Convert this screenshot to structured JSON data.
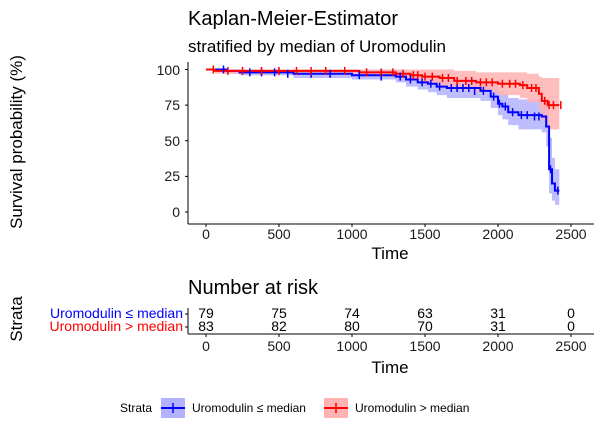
{
  "km": {
    "title": "Kaplan-Meier-Estimator",
    "subtitle": "stratified by median of Uromodulin",
    "xlabel": "Time",
    "ylabel": "Survival probability (%)",
    "xticks": [
      "0",
      "500",
      "1000",
      "1500",
      "2000",
      "2500"
    ],
    "yticks": [
      "0",
      "25",
      "50",
      "75",
      "100"
    ]
  },
  "risk": {
    "title": "Number at risk",
    "ylabel": "Strata",
    "xlabel": "Time",
    "xticks": [
      "0",
      "500",
      "1000",
      "1500",
      "2000",
      "2500"
    ]
  },
  "legend": {
    "title": "Strata",
    "items": [
      {
        "label": "Uromodulin ≤ median",
        "color": "#0000ff",
        "fill": "#b3b3ff"
      },
      {
        "label": "Uromodulin > median",
        "color": "#ff0000",
        "fill": "#ffb3b3"
      }
    ]
  },
  "chart_data": {
    "type": "line",
    "subtype": "step",
    "title": "Kaplan-Meier-Estimator",
    "subtitle": "stratified by median of Uromodulin",
    "xlabel": "Time",
    "ylabel": "Survival probability (%)",
    "xlim": [
      0,
      2500
    ],
    "ylim": [
      0,
      100
    ],
    "grid": false,
    "legend_position": "bottom",
    "series": [
      {
        "name": "Uromodulin ≤ median",
        "color": "#0000ff",
        "steps": [
          [
            0,
            100
          ],
          [
            140,
            99
          ],
          [
            230,
            98
          ],
          [
            600,
            97
          ],
          [
            1000,
            96
          ],
          [
            1300,
            95
          ],
          [
            1370,
            93
          ],
          [
            1450,
            91
          ],
          [
            1520,
            90
          ],
          [
            1580,
            88
          ],
          [
            1650,
            87
          ],
          [
            1880,
            85
          ],
          [
            1950,
            81
          ],
          [
            2000,
            76
          ],
          [
            2030,
            74
          ],
          [
            2070,
            70
          ],
          [
            2140,
            68
          ],
          [
            2300,
            67
          ],
          [
            2330,
            60
          ],
          [
            2350,
            30
          ],
          [
            2370,
            20
          ],
          [
            2390,
            15
          ],
          [
            2420,
            15
          ]
        ],
        "lower": [
          [
            0,
            100
          ],
          [
            140,
            97
          ],
          [
            230,
            96
          ],
          [
            600,
            94
          ],
          [
            1000,
            93
          ],
          [
            1300,
            91
          ],
          [
            1370,
            88
          ],
          [
            1450,
            86
          ],
          [
            1520,
            84
          ],
          [
            1580,
            82
          ],
          [
            1650,
            80
          ],
          [
            1880,
            78
          ],
          [
            1950,
            73
          ],
          [
            2000,
            68
          ],
          [
            2030,
            65
          ],
          [
            2070,
            61
          ],
          [
            2140,
            58
          ],
          [
            2300,
            56
          ],
          [
            2330,
            46
          ],
          [
            2350,
            13
          ],
          [
            2370,
            8
          ],
          [
            2390,
            5
          ],
          [
            2420,
            5
          ]
        ],
        "upper": [
          [
            0,
            100
          ],
          [
            140,
            100
          ],
          [
            230,
            100
          ],
          [
            600,
            100
          ],
          [
            1000,
            100
          ],
          [
            1300,
            99
          ],
          [
            1370,
            98
          ],
          [
            1450,
            96
          ],
          [
            1520,
            95
          ],
          [
            1580,
            94
          ],
          [
            1650,
            93
          ],
          [
            1880,
            92
          ],
          [
            1950,
            89
          ],
          [
            2000,
            85
          ],
          [
            2030,
            83
          ],
          [
            2070,
            80
          ],
          [
            2140,
            79
          ],
          [
            2300,
            78
          ],
          [
            2330,
            74
          ],
          [
            2350,
            52
          ],
          [
            2370,
            38
          ],
          [
            2390,
            30
          ],
          [
            2420,
            30
          ]
        ],
        "censored": [
          [
            120,
            100
          ],
          [
            300,
            98
          ],
          [
            380,
            98
          ],
          [
            470,
            98
          ],
          [
            560,
            97
          ],
          [
            720,
            97
          ],
          [
            850,
            97
          ],
          [
            1050,
            96
          ],
          [
            1200,
            95
          ],
          [
            1330,
            95
          ],
          [
            1400,
            93
          ],
          [
            1480,
            91
          ],
          [
            1540,
            90
          ],
          [
            1600,
            88
          ],
          [
            1680,
            87
          ],
          [
            1720,
            87
          ],
          [
            1760,
            87
          ],
          [
            1800,
            87
          ],
          [
            1840,
            85
          ],
          [
            1900,
            85
          ],
          [
            1970,
            81
          ],
          [
            2010,
            76
          ],
          [
            2050,
            74
          ],
          [
            2100,
            70
          ],
          [
            2160,
            68
          ],
          [
            2200,
            68
          ],
          [
            2250,
            67
          ],
          [
            2280,
            67
          ],
          [
            2360,
            30
          ],
          [
            2410,
            15
          ]
        ]
      },
      {
        "name": "Uromodulin > median",
        "color": "#ff0000",
        "steps": [
          [
            0,
            100
          ],
          [
            60,
            99
          ],
          [
            1050,
            98
          ],
          [
            1300,
            97
          ],
          [
            1400,
            96
          ],
          [
            1480,
            95
          ],
          [
            1600,
            94
          ],
          [
            1700,
            92
          ],
          [
            1850,
            91
          ],
          [
            2000,
            90
          ],
          [
            2150,
            89
          ],
          [
            2200,
            87
          ],
          [
            2280,
            83
          ],
          [
            2300,
            78
          ],
          [
            2340,
            75
          ],
          [
            2420,
            75
          ]
        ],
        "lower": [
          [
            0,
            100
          ],
          [
            60,
            97
          ],
          [
            1050,
            96
          ],
          [
            1300,
            94
          ],
          [
            1400,
            92
          ],
          [
            1480,
            90
          ],
          [
            1600,
            88
          ],
          [
            1700,
            86
          ],
          [
            1850,
            84
          ],
          [
            2000,
            82
          ],
          [
            2150,
            80
          ],
          [
            2200,
            77
          ],
          [
            2280,
            71
          ],
          [
            2300,
            64
          ],
          [
            2340,
            58
          ],
          [
            2420,
            58
          ]
        ],
        "upper": [
          [
            0,
            100
          ],
          [
            60,
            100
          ],
          [
            1050,
            100
          ],
          [
            1300,
            100
          ],
          [
            1400,
            100
          ],
          [
            1480,
            100
          ],
          [
            1600,
            100
          ],
          [
            1700,
            99
          ],
          [
            1850,
            98
          ],
          [
            2000,
            98
          ],
          [
            2150,
            98
          ],
          [
            2200,
            97
          ],
          [
            2280,
            95
          ],
          [
            2300,
            94
          ],
          [
            2340,
            94
          ],
          [
            2420,
            94
          ]
        ],
        "censored": [
          [
            50,
            100
          ],
          [
            150,
            99
          ],
          [
            250,
            99
          ],
          [
            380,
            99
          ],
          [
            500,
            99
          ],
          [
            620,
            99
          ],
          [
            720,
            99
          ],
          [
            820,
            99
          ],
          [
            950,
            99
          ],
          [
            1100,
            98
          ],
          [
            1200,
            98
          ],
          [
            1280,
            98
          ],
          [
            1350,
            97
          ],
          [
            1420,
            96
          ],
          [
            1450,
            96
          ],
          [
            1500,
            95
          ],
          [
            1550,
            95
          ],
          [
            1620,
            94
          ],
          [
            1660,
            94
          ],
          [
            1720,
            92
          ],
          [
            1780,
            92
          ],
          [
            1820,
            92
          ],
          [
            1880,
            91
          ],
          [
            1920,
            91
          ],
          [
            1960,
            91
          ],
          [
            2030,
            90
          ],
          [
            2080,
            90
          ],
          [
            2120,
            90
          ],
          [
            2170,
            89
          ],
          [
            2230,
            87
          ],
          [
            2260,
            87
          ],
          [
            2320,
            78
          ],
          [
            2350,
            75
          ],
          [
            2380,
            75
          ],
          [
            2430,
            75
          ]
        ]
      }
    ],
    "risk_table": {
      "title": "Number at risk",
      "times": [
        0,
        500,
        1000,
        1500,
        2000,
        2500
      ],
      "rows": [
        {
          "name": "Uromodulin ≤ median",
          "color": "#0000ff",
          "counts": [
            "79",
            "75",
            "74",
            "63",
            "31",
            "0"
          ]
        },
        {
          "name": "Uromodulin > median",
          "color": "#ff0000",
          "counts": [
            "83",
            "82",
            "80",
            "70",
            "31",
            "0"
          ]
        }
      ]
    }
  }
}
